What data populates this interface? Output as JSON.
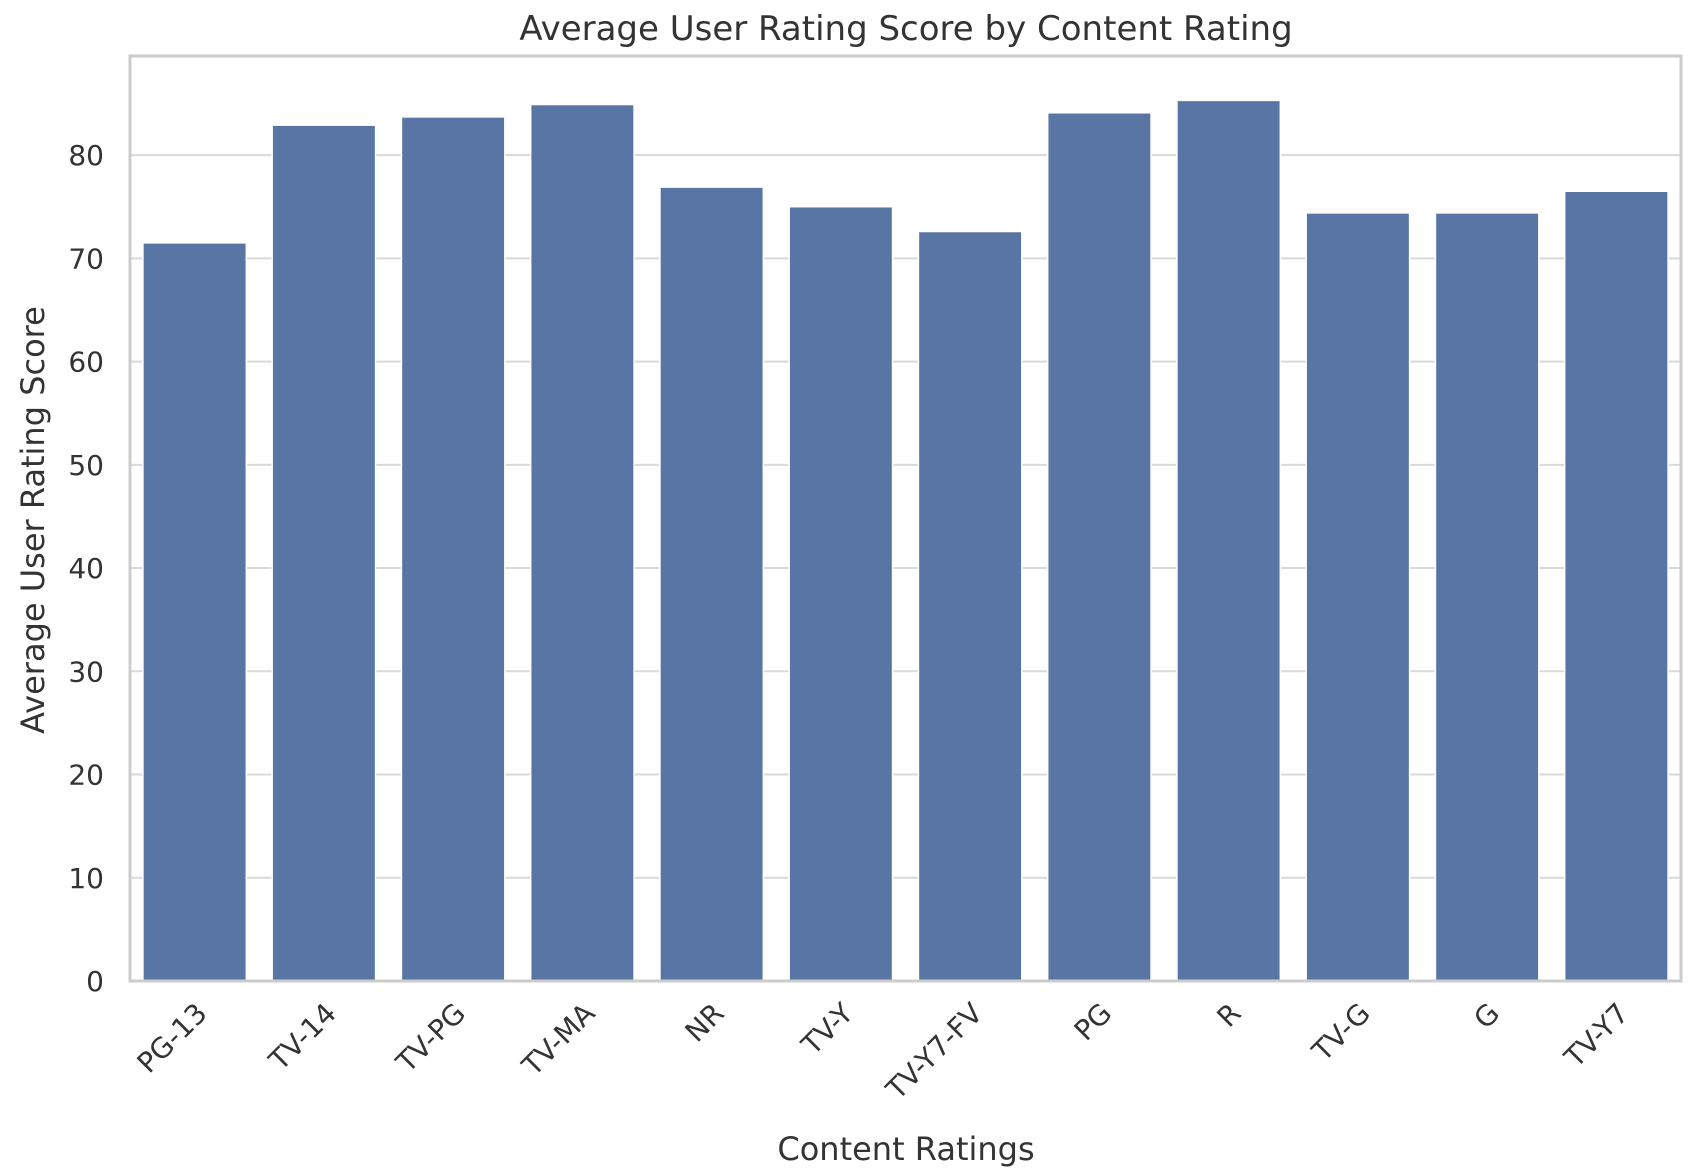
{
  "chart_data": {
    "type": "bar",
    "title": "Average User Rating Score by Content Rating",
    "xlabel": "Content Ratings",
    "ylabel": "Average User Rating Score",
    "categories": [
      "PG-13",
      "TV-14",
      "TV-PG",
      "TV-MA",
      "NR",
      "TV-Y",
      "TV-Y7-FV",
      "PG",
      "R",
      "TV-G",
      "G",
      "TV-Y7"
    ],
    "values": [
      71.5,
      82.9,
      83.7,
      84.9,
      76.9,
      75.0,
      72.6,
      84.1,
      85.3,
      74.4,
      74.4,
      76.5
    ],
    "ylim": [
      0,
      89.6
    ],
    "yticks": [
      0,
      10,
      20,
      30,
      40,
      50,
      60,
      70,
      80
    ],
    "grid": true,
    "bar_color": "#5975a4",
    "grid_color": "#d9d9d9",
    "frame_color": "#cccccc",
    "text_color": "#333333"
  }
}
